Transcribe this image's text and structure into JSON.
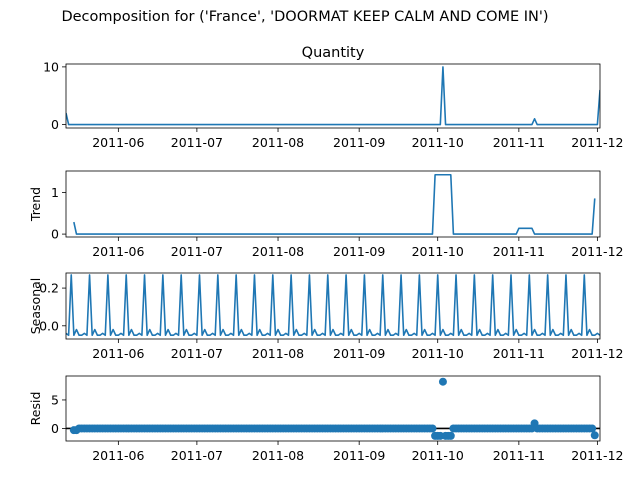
{
  "chart_data": {
    "type": "line",
    "title": "Decomposition for ('France', 'DOORMAT KEEP CALM AND COME IN')",
    "x_tick_labels": [
      "2011-06",
      "2011-07",
      "2011-08",
      "2011-09",
      "2011-10",
      "2011-11",
      "2011-12"
    ],
    "x_tick_dates": [
      "2011-06-01",
      "2011-07-01",
      "2011-08-01",
      "2011-09-01",
      "2011-10-01",
      "2011-11-01",
      "2011-12-01"
    ],
    "xlim": [
      "2011-05-12",
      "2011-12-02"
    ],
    "line_color": "#1f77b4",
    "panels": [
      {
        "name": "observed",
        "title": "Quantity",
        "ylabel": "",
        "kind": "line",
        "ylim": [
          -0.6,
          10.5
        ],
        "yticks": [
          0,
          10
        ],
        "points": [
          [
            "2011-05-12",
            2
          ],
          [
            "2011-05-13",
            0
          ],
          [
            "2011-10-02",
            0
          ],
          [
            "2011-10-03",
            10
          ],
          [
            "2011-10-04",
            0
          ],
          [
            "2011-11-06",
            0
          ],
          [
            "2011-11-07",
            1
          ],
          [
            "2011-11-08",
            0
          ],
          [
            "2011-12-01",
            0
          ],
          [
            "2011-12-02",
            6
          ]
        ]
      },
      {
        "name": "trend",
        "title": "",
        "ylabel": "Trend",
        "kind": "line",
        "ylim": [
          -0.07,
          1.52
        ],
        "yticks": [
          0,
          1
        ],
        "points": [
          [
            "2011-05-15",
            0.29
          ],
          [
            "2011-05-16",
            0
          ],
          [
            "2011-09-29",
            0
          ],
          [
            "2011-09-30",
            1.43
          ],
          [
            "2011-10-06",
            1.43
          ],
          [
            "2011-10-07",
            0
          ],
          [
            "2011-10-31",
            0
          ],
          [
            "2011-11-01",
            0.14
          ],
          [
            "2011-11-06",
            0.14
          ],
          [
            "2011-11-07",
            0
          ],
          [
            "2011-11-29",
            0
          ],
          [
            "2011-11-30",
            0.86
          ]
        ]
      },
      {
        "name": "seasonal",
        "title": "",
        "ylabel": "Seasonal",
        "kind": "periodic",
        "ylim": [
          -0.07,
          0.28
        ],
        "yticks": [
          0.0,
          0.2
        ],
        "ytick_labels": [
          "0.0",
          "0.2"
        ],
        "period": 7,
        "start": "2011-05-12",
        "end": "2011-12-02",
        "pattern": [
          -0.04,
          -0.05,
          0.27,
          -0.05,
          -0.02,
          -0.05,
          -0.05
        ]
      },
      {
        "name": "resid",
        "title": "",
        "ylabel": "Resid",
        "kind": "scatter",
        "ylim": [
          -2.2,
          9.2
        ],
        "yticks": [
          0,
          5
        ],
        "baseline": 0,
        "points_note": "near-zero residuals from 2011-05-15 to 2011-11-30 with exceptions",
        "start": "2011-05-15",
        "end": "2011-11-30",
        "default_y": 0,
        "exceptions": [
          [
            "2011-09-30",
            -1.3
          ],
          [
            "2011-10-01",
            -1.3
          ],
          [
            "2011-10-02",
            -1.3
          ],
          [
            "2011-10-03",
            8.2
          ],
          [
            "2011-10-04",
            -1.3
          ],
          [
            "2011-10-05",
            -1.3
          ],
          [
            "2011-10-06",
            -1.3
          ],
          [
            "2011-11-07",
            0.9
          ],
          [
            "2011-11-30",
            -1.2
          ],
          [
            "2011-05-15",
            -0.3
          ],
          [
            "2011-05-16",
            -0.3
          ]
        ]
      }
    ]
  }
}
